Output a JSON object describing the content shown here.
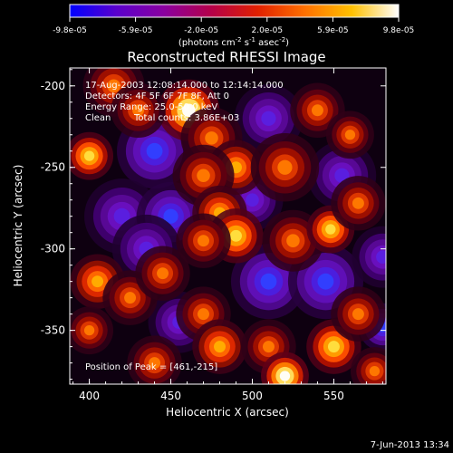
{
  "colorbar": {
    "ticks": [
      "-9.8e-05",
      "-5.9e-05",
      "-2.0e-05",
      "2.0e-05",
      "5.9e-05",
      "9.8e-05"
    ],
    "units_main": "(photons cm",
    "units_sup1": "-2",
    "units_mid": " s",
    "units_sup2": "-1",
    "units_end": " asec",
    "units_sup3": "-2",
    "units_close": ")",
    "stops": [
      "#0000ff",
      "#5a00cc",
      "#8a00a0",
      "#b4004a",
      "#e02000",
      "#ff7000",
      "#ffc000",
      "#ffffff"
    ]
  },
  "annotations": {
    "line1": "17-Aug-2003 12:08:14.000 to 12:14:14.000",
    "line2": "Detectors: 4F 5F 6F 7F 8F, Att 0",
    "line3": "Energy Range: 25.0-50.0 keV",
    "line4_label": "Clean",
    "line4_value": "Total counts: 3.86E+03",
    "peak": "Position of Peak = [461,-215]"
  },
  "footer": {
    "timestamp": "7-Jun-2013 13:34"
  },
  "chart_data": {
    "type": "heatmap",
    "title": "Reconstructed RHESSI Image",
    "xlabel": "Heliocentric X (arcsec)",
    "ylabel": "Heliocentric Y (arcsec)",
    "xlim": [
      388,
      582
    ],
    "ylim": [
      -383,
      -189
    ],
    "x_ticks": [
      400,
      450,
      500,
      550
    ],
    "y_ticks": [
      -200,
      -250,
      -300,
      -350
    ],
    "x_tick_labels": [
      "400",
      "450",
      "500",
      "550"
    ],
    "y_tick_labels": [
      "-200",
      "-250",
      "-300",
      "-350"
    ],
    "color_range": [
      -9.8e-05,
      9.8e-05
    ],
    "peak": {
      "x": 461,
      "y": -215
    },
    "bright_sources": [
      {
        "x": 461,
        "y": -215,
        "amp": 1.0,
        "r": 9
      },
      {
        "x": 400,
        "y": -243,
        "amp": 0.85,
        "r": 7
      },
      {
        "x": 415,
        "y": -200,
        "amp": 0.5,
        "r": 9
      },
      {
        "x": 430,
        "y": -215,
        "amp": 0.45,
        "r": 8
      },
      {
        "x": 475,
        "y": -232,
        "amp": 0.55,
        "r": 9
      },
      {
        "x": 490,
        "y": -250,
        "amp": 0.7,
        "r": 8
      },
      {
        "x": 470,
        "y": -255,
        "amp": 0.5,
        "r": 9
      },
      {
        "x": 480,
        "y": -278,
        "amp": 0.6,
        "r": 8
      },
      {
        "x": 490,
        "y": -292,
        "amp": 0.82,
        "r": 8
      },
      {
        "x": 470,
        "y": -295,
        "amp": 0.5,
        "r": 8
      },
      {
        "x": 520,
        "y": -250,
        "amp": 0.55,
        "r": 10
      },
      {
        "x": 540,
        "y": -215,
        "amp": 0.5,
        "r": 8
      },
      {
        "x": 560,
        "y": -230,
        "amp": 0.45,
        "r": 7
      },
      {
        "x": 525,
        "y": -295,
        "amp": 0.5,
        "r": 9
      },
      {
        "x": 548,
        "y": -288,
        "amp": 0.85,
        "r": 7
      },
      {
        "x": 565,
        "y": -272,
        "amp": 0.55,
        "r": 8
      },
      {
        "x": 405,
        "y": -320,
        "amp": 0.7,
        "r": 8
      },
      {
        "x": 425,
        "y": -330,
        "amp": 0.55,
        "r": 8
      },
      {
        "x": 445,
        "y": -315,
        "amp": 0.5,
        "r": 8
      },
      {
        "x": 400,
        "y": -350,
        "amp": 0.4,
        "r": 7
      },
      {
        "x": 470,
        "y": -340,
        "amp": 0.5,
        "r": 8
      },
      {
        "x": 480,
        "y": -360,
        "amp": 0.6,
        "r": 8
      },
      {
        "x": 510,
        "y": -360,
        "amp": 0.5,
        "r": 8
      },
      {
        "x": 520,
        "y": -378,
        "amp": 0.95,
        "r": 7
      },
      {
        "x": 550,
        "y": -360,
        "amp": 0.9,
        "r": 8
      },
      {
        "x": 565,
        "y": -340,
        "amp": 0.5,
        "r": 8
      },
      {
        "x": 575,
        "y": -375,
        "amp": 0.55,
        "r": 7
      },
      {
        "x": 440,
        "y": -370,
        "amp": 0.45,
        "r": 8
      }
    ],
    "dim_sources": [
      {
        "x": 440,
        "y": -240,
        "amp": 0.55,
        "r": 11
      },
      {
        "x": 420,
        "y": -280,
        "amp": 0.45,
        "r": 11
      },
      {
        "x": 450,
        "y": -280,
        "amp": 0.55,
        "r": 10
      },
      {
        "x": 510,
        "y": -220,
        "amp": 0.5,
        "r": 10
      },
      {
        "x": 555,
        "y": -255,
        "amp": 0.45,
        "r": 10
      },
      {
        "x": 435,
        "y": -300,
        "amp": 0.5,
        "r": 10
      },
      {
        "x": 510,
        "y": -320,
        "amp": 0.6,
        "r": 11
      },
      {
        "x": 545,
        "y": -320,
        "amp": 0.55,
        "r": 11
      },
      {
        "x": 580,
        "y": -305,
        "amp": 0.45,
        "r": 9
      },
      {
        "x": 455,
        "y": -345,
        "amp": 0.4,
        "r": 9
      },
      {
        "x": 580,
        "y": -348,
        "amp": 0.55,
        "r": 7
      },
      {
        "x": 500,
        "y": -270,
        "amp": 0.4,
        "r": 9
      }
    ]
  }
}
